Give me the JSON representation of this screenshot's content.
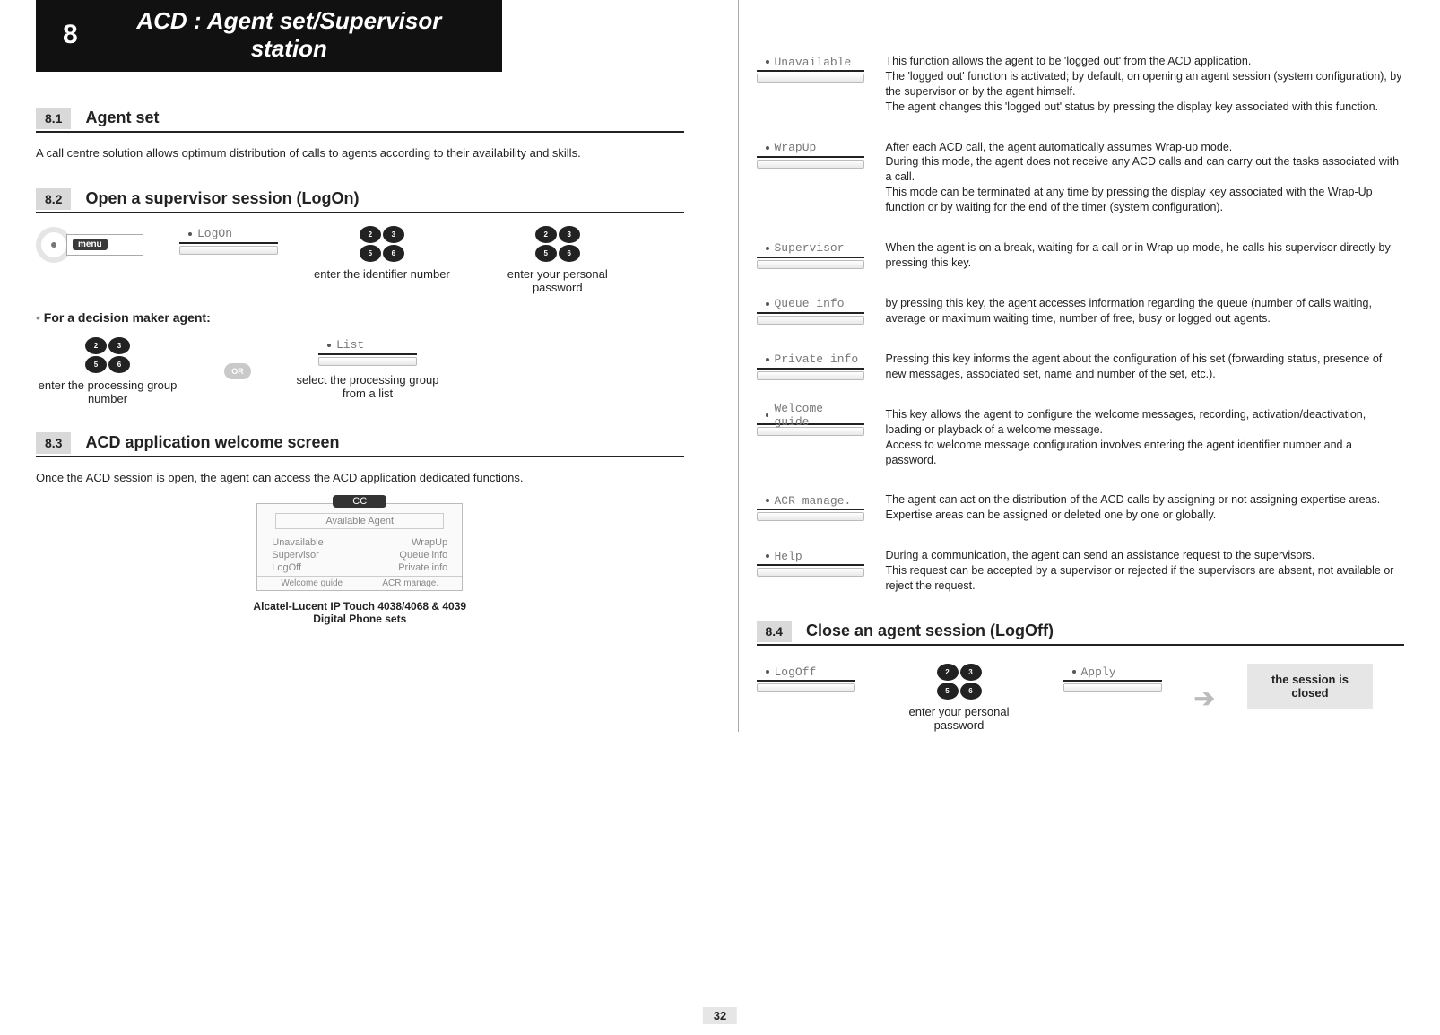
{
  "chapter": {
    "num": "8",
    "title": "ACD : Agent set/Supervisor station"
  },
  "s81": {
    "num": "8.1",
    "title": "Agent set",
    "text": "A call centre solution allows optimum distribution of calls to agents according to their availability and skills."
  },
  "s82": {
    "num": "8.2",
    "title": "Open a supervisor session (LogOn)",
    "menu_label": "menu",
    "logon_key": "LogOn",
    "enter_id": "enter the identifier number",
    "enter_pw": "enter your personal password",
    "sub": "For a decision maker agent:",
    "enter_group": "enter the processing group number",
    "or": "OR",
    "list_key": "List",
    "select_group": "select the processing group from a list"
  },
  "s83": {
    "num": "8.3",
    "title": "ACD application welcome screen",
    "text": "Once the ACD session is open, the agent can access the ACD application dedicated functions.",
    "screen": {
      "cc": "CC",
      "status": "Available Agent",
      "l1": "Unavailable",
      "r1": "WrapUp",
      "l2": "Supervisor",
      "r2": "Queue info",
      "l3": "LogOff",
      "r3": "Private info",
      "b1": "Welcome guide",
      "b2": "ACR manage."
    },
    "caption": "Alcatel-Lucent IP Touch 4038/4068 & 4039 Digital Phone sets"
  },
  "keypad": {
    "k1": "2",
    "k2": "3",
    "k3": "5",
    "k4": "6"
  },
  "funcs": {
    "unavailable": {
      "key": "Unavailable",
      "text": "This function allows the agent to be 'logged out' from the ACD application.\nThe 'logged out' function is activated; by default, on opening an agent session (system configuration), by the supervisor or by the agent himself.\nThe agent changes this 'logged out' status by pressing the display key associated with this function."
    },
    "wrapup": {
      "key": "WrapUp",
      "text": "After each ACD call, the agent automatically assumes Wrap-up mode.\nDuring this mode, the agent does not receive any ACD calls and can carry out the tasks associated with a call.\nThis mode can be terminated at any time by pressing the display key associated with the Wrap-Up function or by waiting for the end of the timer (system configuration)."
    },
    "supervisor": {
      "key": "Supervisor",
      "text": "When the agent is on a break, waiting for a call or in Wrap-up mode, he calls his supervisor directly by pressing this key."
    },
    "queue": {
      "key": "Queue info",
      "text": "by pressing this key, the agent accesses information regarding the queue (number of calls waiting, average or maximum waiting time, number of free, busy or logged out agents."
    },
    "private": {
      "key": "Private info",
      "text": "Pressing this key informs the agent about the configuration of his set (forwarding status, presence of new messages, associated set, name and number of the set, etc.)."
    },
    "welcome": {
      "key": "Welcome guide",
      "text": "This key allows the agent to configure the welcome messages, recording, activation/deactivation, loading or playback of a welcome message.\nAccess to welcome message configuration involves entering the agent identifier number and a password."
    },
    "acr": {
      "key": "ACR manage.",
      "text": "The agent can act on the distribution of the ACD calls by assigning or not assigning expertise areas.\nExpertise areas can be assigned or deleted one by one or globally."
    },
    "help": {
      "key": "Help",
      "text": "During a communication, the agent can send an assistance request to the supervisors.\nThis request can be accepted by a supervisor or rejected if the supervisors are absent, not available or reject the request."
    }
  },
  "s84": {
    "num": "8.4",
    "title": "Close an agent session (LogOff)",
    "logoff_key": "LogOff",
    "apply_key": "Apply",
    "enter_pw": "enter your personal password",
    "closed": "the session is closed"
  },
  "page_num": "32"
}
